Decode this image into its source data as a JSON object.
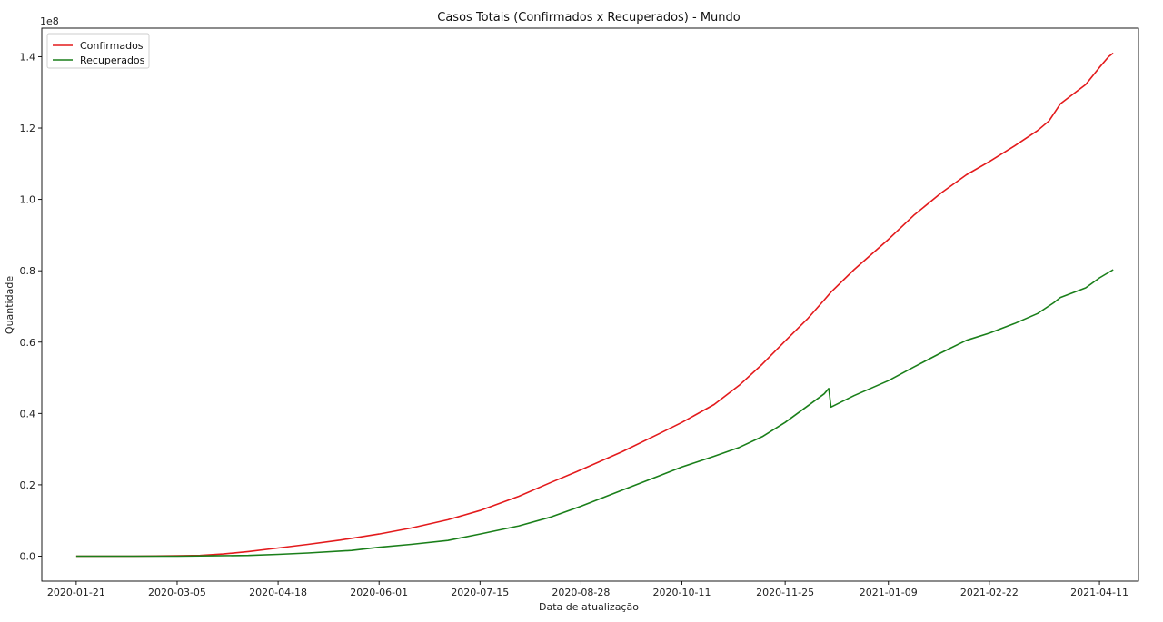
{
  "chart_data": {
    "type": "line",
    "title": "Casos Totais (Confirmados x Recuperados) - Mundo",
    "xlabel": "Data de atualização",
    "ylabel": "Quantidade",
    "y_offset_label": "1e8",
    "y_scale": 100000000,
    "xlim": [
      "2020-01-06",
      "2021-04-28"
    ],
    "ylim": [
      -0.07,
      1.48
    ],
    "xticks": [
      "2020-01-21",
      "2020-03-05",
      "2020-04-18",
      "2020-06-01",
      "2020-07-15",
      "2020-08-28",
      "2020-10-11",
      "2020-11-25",
      "2021-01-09",
      "2021-02-22",
      "2021-04-11"
    ],
    "yticks": [
      0.0,
      0.2,
      0.4,
      0.6,
      0.8,
      1.0,
      1.2,
      1.4
    ],
    "ytick_labels": [
      "0.0",
      "0.2",
      "0.4",
      "0.6",
      "0.8",
      "1.0",
      "1.2",
      "1.4"
    ],
    "legend_position": "upper-left",
    "grid": false,
    "series": [
      {
        "name": "Confirmados",
        "color": "#e31a1c",
        "x": [
          "2020-01-21",
          "2020-02-15",
          "2020-03-05",
          "2020-03-15",
          "2020-03-25",
          "2020-04-05",
          "2020-04-18",
          "2020-05-01",
          "2020-05-15",
          "2020-06-01",
          "2020-06-15",
          "2020-07-01",
          "2020-07-15",
          "2020-08-01",
          "2020-08-15",
          "2020-08-28",
          "2020-09-15",
          "2020-10-01",
          "2020-10-11",
          "2020-10-25",
          "2020-11-05",
          "2020-11-15",
          "2020-11-25",
          "2020-12-05",
          "2020-12-12",
          "2020-12-15",
          "2020-12-25",
          "2021-01-09",
          "2021-01-20",
          "2021-02-01",
          "2021-02-12",
          "2021-02-22",
          "2021-03-05",
          "2021-03-15",
          "2021-03-20",
          "2021-03-25",
          "2021-04-05",
          "2021-04-11",
          "2021-04-15",
          "2021-04-17"
        ],
        "values": [
          0.0,
          0.0,
          0.001,
          0.002,
          0.006,
          0.013,
          0.023,
          0.033,
          0.045,
          0.062,
          0.079,
          0.102,
          0.128,
          0.168,
          0.207,
          0.242,
          0.293,
          0.343,
          0.375,
          0.425,
          0.479,
          0.538,
          0.603,
          0.667,
          0.718,
          0.74,
          0.803,
          0.888,
          0.955,
          1.018,
          1.069,
          1.106,
          1.15,
          1.193,
          1.22,
          1.268,
          1.322,
          1.37,
          1.4,
          1.41
        ]
      },
      {
        "name": "Recuperados",
        "color": "#1a7f1a",
        "x": [
          "2020-01-21",
          "2020-03-05",
          "2020-03-20",
          "2020-04-05",
          "2020-04-18",
          "2020-05-01",
          "2020-05-20",
          "2020-06-01",
          "2020-06-15",
          "2020-07-01",
          "2020-07-15",
          "2020-08-01",
          "2020-08-15",
          "2020-08-28",
          "2020-09-15",
          "2020-10-01",
          "2020-10-11",
          "2020-10-25",
          "2020-11-05",
          "2020-11-15",
          "2020-11-25",
          "2020-12-05",
          "2020-12-12",
          "2020-12-14",
          "2020-12-15",
          "2020-12-25",
          "2021-01-09",
          "2021-01-20",
          "2021-02-01",
          "2021-02-12",
          "2021-02-22",
          "2021-03-05",
          "2021-03-15",
          "2021-03-22",
          "2021-03-25",
          "2021-04-05",
          "2021-04-11",
          "2021-04-17"
        ],
        "values": [
          0.0,
          0.0,
          0.001,
          0.002,
          0.005,
          0.009,
          0.016,
          0.025,
          0.033,
          0.044,
          0.062,
          0.085,
          0.11,
          0.14,
          0.185,
          0.225,
          0.25,
          0.28,
          0.305,
          0.335,
          0.375,
          0.422,
          0.455,
          0.47,
          0.418,
          0.45,
          0.492,
          0.53,
          0.57,
          0.605,
          0.625,
          0.652,
          0.68,
          0.71,
          0.725,
          0.752,
          0.78,
          0.803
        ]
      }
    ]
  }
}
